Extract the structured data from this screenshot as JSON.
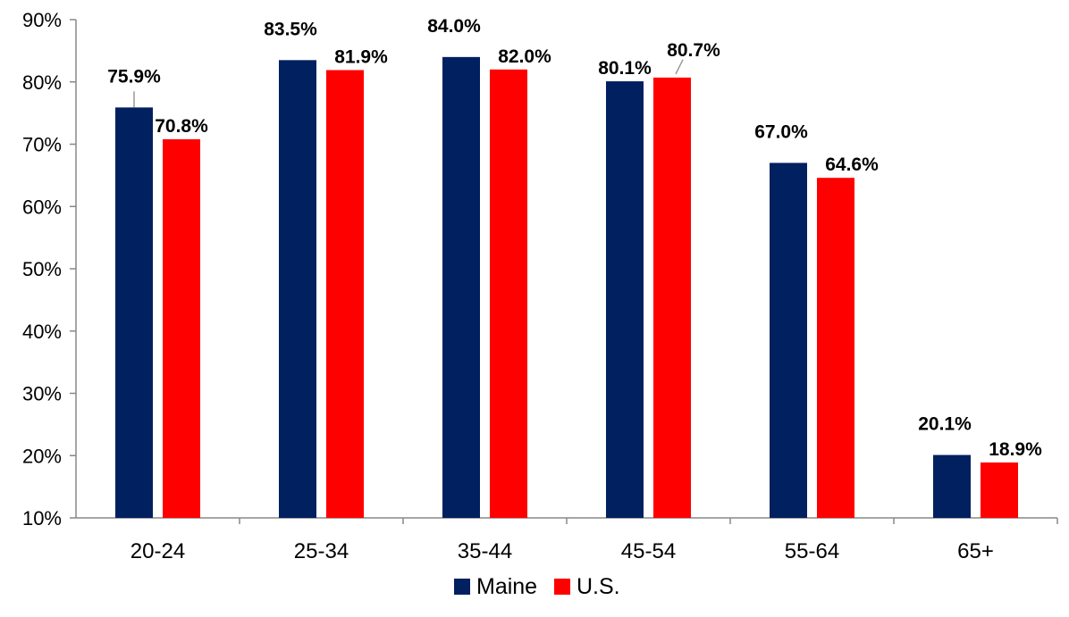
{
  "chart_data": {
    "type": "bar",
    "title": "",
    "xlabel": "",
    "ylabel": "",
    "ylim": [
      10,
      90
    ],
    "yticks": [
      "10%",
      "20%",
      "30%",
      "40%",
      "50%",
      "60%",
      "70%",
      "80%",
      "90%"
    ],
    "categories": [
      "20-24",
      "25-34",
      "35-44",
      "45-54",
      "55-64",
      "65+"
    ],
    "series": [
      {
        "name": "Maine",
        "color": "#002060",
        "values": [
          75.9,
          83.5,
          84.0,
          80.1,
          67.0,
          20.1
        ],
        "labels": [
          "75.9%",
          "83.5%",
          "84.0%",
          "80.1%",
          "67.0%",
          "20.1%"
        ]
      },
      {
        "name": "U.S.",
        "color": "#ff0000",
        "values": [
          70.8,
          81.9,
          82.0,
          80.7,
          64.6,
          18.9
        ],
        "labels": [
          "70.8%",
          "81.9%",
          "82.0%",
          "80.7%",
          "64.6%",
          "18.9%"
        ]
      }
    ],
    "grid": false,
    "legend_position": "bottom"
  }
}
